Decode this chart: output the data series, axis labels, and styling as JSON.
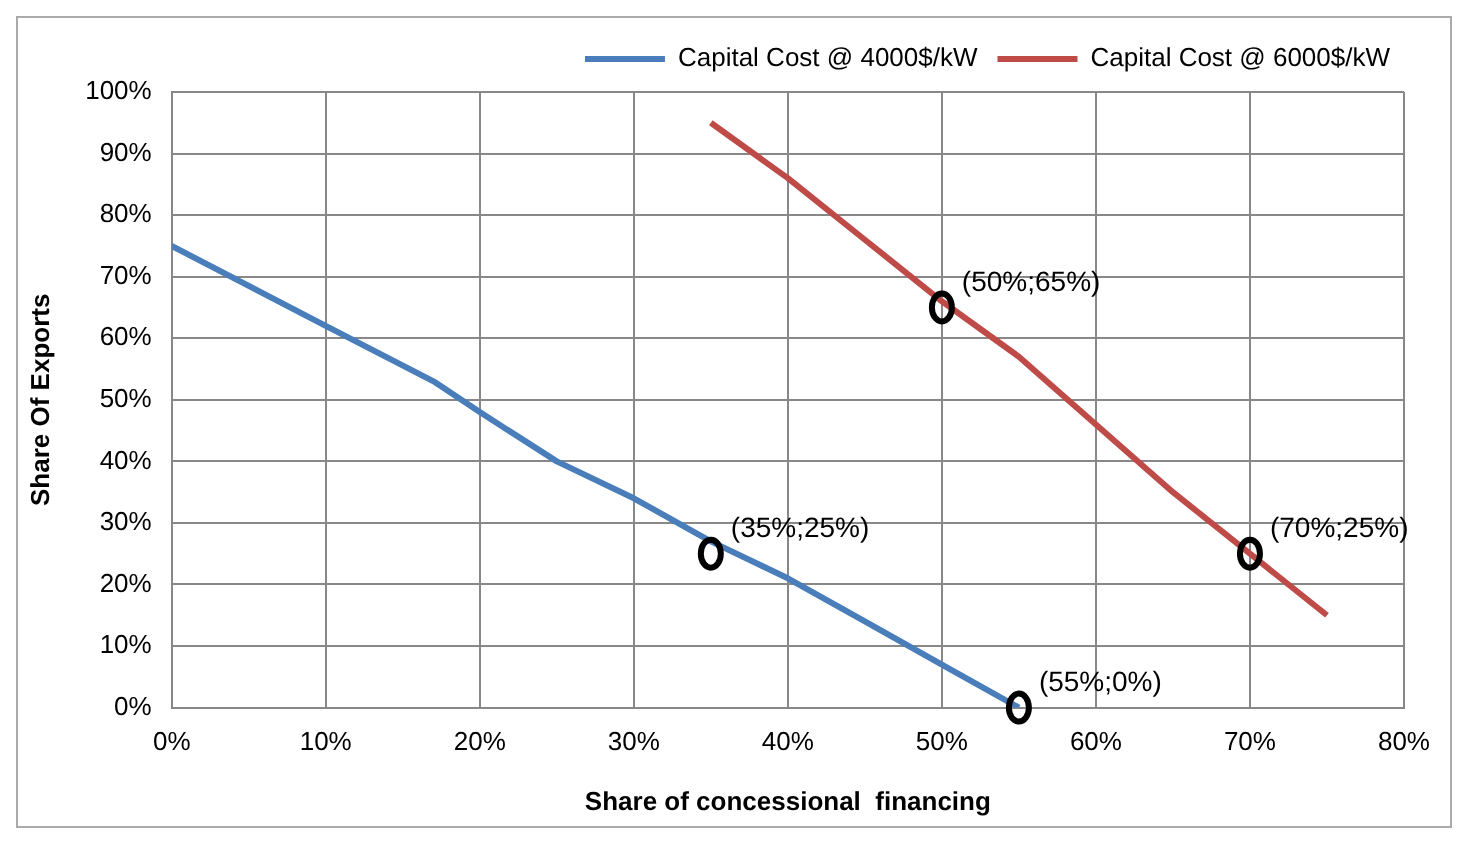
{
  "chart_data": {
    "type": "line",
    "xlabel": "Share of concessional  financing",
    "ylabel": "Share Of Exports",
    "xlim": [
      0,
      80
    ],
    "ylim": [
      0,
      100
    ],
    "xticks": [
      {
        "value": 0,
        "label": "0%"
      },
      {
        "value": 10,
        "label": "10%"
      },
      {
        "value": 20,
        "label": "20%"
      },
      {
        "value": 30,
        "label": "30%"
      },
      {
        "value": 40,
        "label": "40%"
      },
      {
        "value": 50,
        "label": "50%"
      },
      {
        "value": 60,
        "label": "60%"
      },
      {
        "value": 70,
        "label": "70%"
      },
      {
        "value": 80,
        "label": "80%"
      }
    ],
    "yticks": [
      {
        "value": 0,
        "label": "0%"
      },
      {
        "value": 10,
        "label": "10%"
      },
      {
        "value": 20,
        "label": "20%"
      },
      {
        "value": 30,
        "label": "30%"
      },
      {
        "value": 40,
        "label": "40%"
      },
      {
        "value": 50,
        "label": "50%"
      },
      {
        "value": 60,
        "label": "60%"
      },
      {
        "value": 70,
        "label": "70%"
      },
      {
        "value": 80,
        "label": "80%"
      },
      {
        "value": 90,
        "label": "90%"
      },
      {
        "value": 100,
        "label": "100%"
      }
    ],
    "grid": true,
    "legend": "top right",
    "marker": "none",
    "line_style": "solid",
    "series": [
      {
        "name": "Capital Cost @ 4000$/kW",
        "color": "#4a7ebb",
        "x": [
          0,
          10,
          17,
          20,
          25,
          30,
          35,
          40,
          45,
          50,
          55
        ],
        "values": [
          75,
          62,
          53,
          48,
          40,
          34,
          27,
          21,
          14,
          7,
          0
        ]
      },
      {
        "name": "Capital Cost @ 6000$/kW",
        "color": "#be4b48",
        "x": [
          35,
          40,
          45,
          50,
          55,
          60,
          65,
          70,
          75
        ],
        "values": [
          95,
          86,
          76,
          66,
          57,
          46,
          35,
          25,
          15
        ]
      }
    ],
    "annotations": [
      {
        "text": "(35%;25%)",
        "x": 35,
        "y": 25
      },
      {
        "text": "(50%;65%)",
        "x": 50,
        "y": 65
      },
      {
        "text": "(55%;0%)",
        "x": 55,
        "y": 0
      },
      {
        "text": "(70%;25%)",
        "x": 70,
        "y": 25
      }
    ]
  }
}
